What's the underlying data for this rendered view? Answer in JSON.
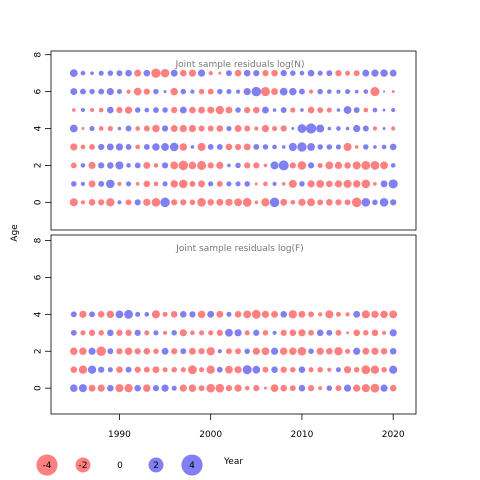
{
  "chart_data": {
    "type": "scatter",
    "ylabel": "Age",
    "xlabel": "",
    "x_ticks": [
      1990,
      2000,
      2010,
      2020
    ],
    "xlim": [
      1982.5,
      2022.5
    ],
    "years_start": 1985,
    "years_end": 2020,
    "colors": {
      "positive": "#5555ee",
      "negative": "#ff5555",
      "frame": "#000000"
    },
    "panels": [
      {
        "title": "Joint sample residuals log(N)",
        "y_ticks": [
          0,
          2,
          4,
          6,
          8
        ],
        "ylim": [
          -1.5,
          8.2
        ],
        "ages": [
          0,
          1,
          2,
          3,
          4,
          5,
          6,
          7
        ],
        "residuals": [
          "-1.5 -0.4 -1.0 -0.9 -1.6 0.4 -0.8 0.9 -1.2 -1.7 2.1 -0.9 -0.9 -0.7 -1.7 -1.0 -1.1 -1.2 -1.4 -1.8 -0.3 -1.6 2.1 -1.1 -0.5 -1.2 -1.4 -0.8 -1.0 -0.9 -0.8 -2.1 1.7 0.7 1.7 0.9",
          "0.7 0.4 -1.1 0.8 1.7 -0.4 0.6 -0.3 -1.0 -0.5 0.6 -1.3 -1.7 -0.8 -1.1 0.6 -0.8 0.6 0.6 0.7 -0.2 -0.5 0.4 -0.3 -1.5 0.7 -1.2 -1.4 -1.0 -1.2 -1.5 -1.3 -1.7 -0.3 1.1 1.9",
          "-0.8 0.5 -1.2 0.9 1.0 1.5 0.5 0.8 -1.1 -0.5 0.9 -1.4 -2.1 -1.3 -1.9 -0.9 -1.2 0.3 0.7 -0.9 -0.9 -0.3 1.5 2.3 -0.9 -1.7 0.9 -0.6 -1.4 -1.2 -1.0 -1.5 -1.8 -1.8 -1.4 0.5",
          "-1.2 -0.5 -0.8 0.9 1.1 1.2 0.8 -0.5 0.8 1.3 1.4 1.7 -1.3 0.3 -1.5 0.8 0.8 -1.0 -0.9 -1.1 0.8 0.7 0.5 0.3 1.5 2.0 1.4 0.7 0.7 0.6 -1.5 -0.3 0.7 0.3 0.5 1.0",
          "1.4 -0.2 0.6 -0.5 -0.6 0.3 0.8 -0.5 -0.8 -1.3 0.9 -1.1 -1.2 -1.2 -0.8 -0.8 -1.0 0.6 -1.1 -0.8 -0.4 -1.2 -0.6 -0.9 0.2 1.8 2.4 1.5 0.3 0.5 0.3 1.2 0.8 -0.4 0.2 -0.4",
          "-0.3 0.4 -0.4 -0.5 1.0 -0.9 -1.2 0.7 0.5 0.8 0.7 -0.9 1.1 -1.0 -1.1 -1.1 -1.6 -1.1 0.7 -0.9 -1.0 1.1 0.3 0.8 -0.6 0.3 -1.0 -0.8 -0.6 0.3 1.4 0.8 -0.5 0.5 0.2 0.4",
          "1.1 0.8 0.7 0.8 1.2 0.6 -0.4 -1.4 -0.9 0.7 0.2 -1.3 0.7 0.4 -0.7 -0.8 0.7 0.6 0.4 1.2 2.1 -1.9 -1.1 1.4 1.3 0.8 -0.4 0.7 0.5 0.4 0.6 0.3 0.5 -1.9 0.1 -0.2",
          "1.4 0.5 0.3 0.6 0.7 0.8 1.0 -1.1 1.0 -2.0 -1.7 1.1 -1.0 -1.2 1.2 -0.4 -0.2 0.8 -1.0 1.0 0.9 -0.9 -1.0 0.9 0.7 0.5 1.0 0.6 0.8 -0.9 -0.6 -0.8 1.1 1.2 1.3 1.1"
        ]
      },
      {
        "title": "Joint sample residuals log(F)",
        "y_ticks": [
          0,
          2,
          4,
          6,
          8
        ],
        "ylim": [
          -1.4,
          8.3
        ],
        "ages": [
          0,
          1,
          2,
          3,
          4
        ],
        "residuals": [
          "1.3 1.5 -1.1 -1.2 1.0 -1.5 -1.6 1.0 -1.3 0.9 1.2 0.6 -1.2 -1.3 -0.8 -1.7 -1.7 -0.9 -1.2 -0.5 -0.9 -0.2 -1.4 -1.0 -0.8 1.0 -0.9 -0.4 0.7 -0.8 1.2 -1.2 -1.5 -1.8 1.2 -1.0",
          "-1.0 -1.6 1.6 0.9 0.6 -1.0 0.8 -0.9 -0.8 -1.1 -0.6 -0.7 -0.6 -1.8 -0.6 -1.6 0.8 -1.4 -1.2 1.9 1.4 -0.8 1.0 -0.9 -0.7 1.0 -0.6 -0.7 -0.4 0.6 -1.2 -0.7 -1.8 -1.6 -0.7 1.5",
          "-1.3 -1.3 1.2 -2.1 0.8 -0.9 -1.3 -0.9 -1.0 -0.7 1.1 -0.9 0.8 -1.1 -0.9 -1.6 0.4 -0.8 -0.8 0.7 -1.2 -1.4 1.2 -1.3 -1.3 -1.7 0.7 -1.2 -1.0 -1.6 -0.6 1.2 -1.1 -1.2 -1.0 1.0",
          "0.8 -0.6 -0.9 -0.7 1.0 -0.9 -0.9 0.9 -0.6 0.6 -0.4 0.7 -1.2 -0.5 -0.6 -0.6 -0.9 1.4 1.2 -0.6 0.9 -0.7 0.4 -0.9 -1.0 -1.2 -0.8 1.0 0.8 -0.8 -0.2 -1.0 -0.7 -1.0 -0.4 1.2",
          "0.8 -1.2 0.8 -1.0 -1.3 1.4 1.8 0.6 0.5 -1.5 -0.6 -1.0 1.0 0.9 -1.3 1.1 -1.1 0.6 -1.0 -1.4 -1.8 -1.2 -1.1 1.0 -1.6 -1.1 -0.8 -0.4 -1.5 -0.6 -0.4 1.1 -1.5 -1.2 -1.3 -1.4"
        ]
      }
    ],
    "legend": [
      {
        "label": "-4",
        "value": -4
      },
      {
        "label": "-2",
        "value": -2
      },
      {
        "label": "0",
        "value": 0
      },
      {
        "label": "2",
        "value": 2
      },
      {
        "label": "4",
        "value": 4
      }
    ],
    "legend_title": "Year"
  }
}
